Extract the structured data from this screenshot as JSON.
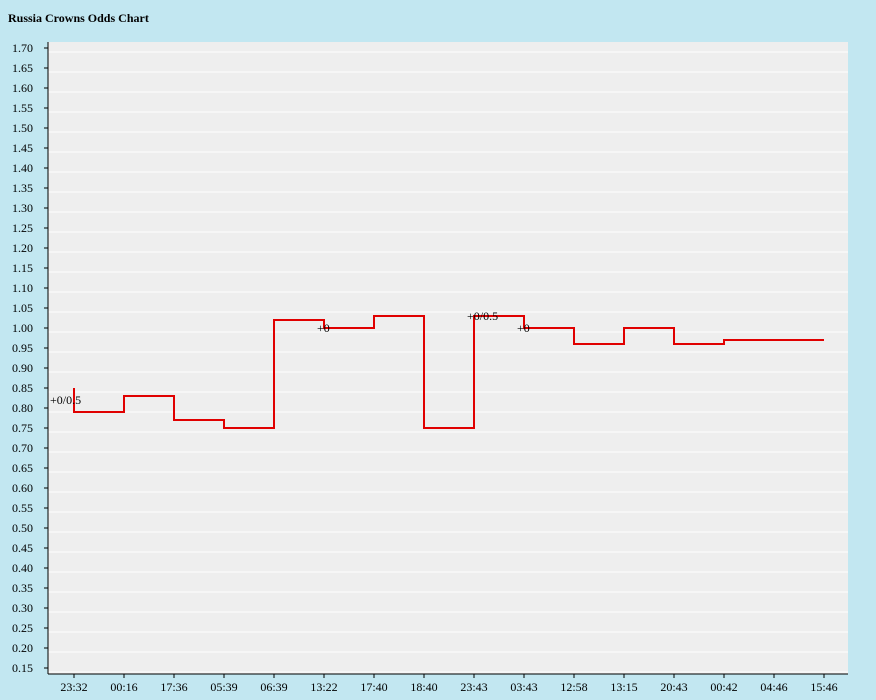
{
  "chart_data": {
    "type": "line",
    "title": "Russia Crowns Odds Chart",
    "step": true,
    "categories": [
      "23:32",
      "00:16",
      "17:36",
      "05:39",
      "06:39",
      "13:22",
      "17:40",
      "18:40",
      "23:43",
      "03:43",
      "12:58",
      "13:15",
      "20:43",
      "00:42",
      "04:46",
      "15:46"
    ],
    "start_value": 0.86,
    "values": [
      0.8,
      0.84,
      0.78,
      0.76,
      1.03,
      1.01,
      1.04,
      0.76,
      1.04,
      1.01,
      0.97,
      1.01,
      0.97,
      0.98,
      0.98,
      0.98
    ],
    "annotations": [
      {
        "category": "23:32",
        "text": "+0/0.5"
      },
      {
        "category": "13:22",
        "text": "+0"
      },
      {
        "category": "23:43",
        "text": "+0/0.5"
      },
      {
        "category": "03:43",
        "text": "+0"
      }
    ],
    "ylim": [
      0.15,
      1.7
    ],
    "ytick_step": 0.05,
    "grid": true,
    "colors": {
      "line": "#e00000",
      "plot_bg": "#eeeeee",
      "page_bg": "#c2e7f1",
      "grid": "#ffffff"
    }
  }
}
